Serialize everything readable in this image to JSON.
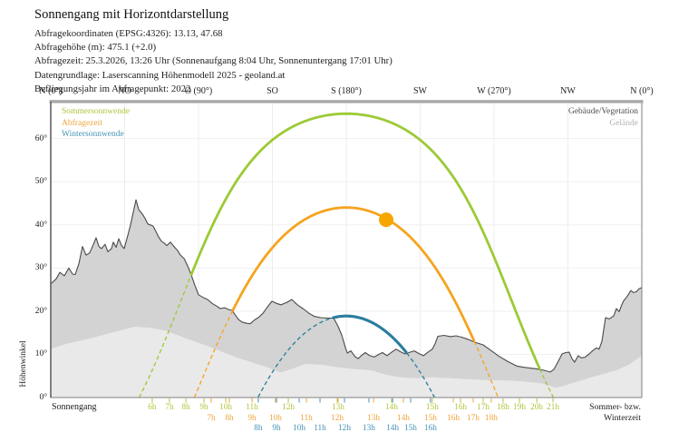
{
  "header": {
    "title": "Sonnengang mit Horizontdarstellung",
    "meta": [
      "Abfragekoordinaten (EPSG:4326): 13.13, 47.68",
      "Abfragehöhe (m): 475.1 (+2.0)",
      "Abfragezeit: 25.3.2026, 13:26 Uhr (Sonnenaufgang 8:04 Uhr, Sonnenuntergang 17:01 Uhr)",
      "Datengrundlage: Laserscanning Höhenmodell 2025 - geoland.at",
      "Befliegungsjahr im Abfragepunkt: 2022"
    ]
  },
  "chart_data": {
    "type": "line",
    "x_axis": {
      "compass_labels": [
        "N (0°)",
        "NO",
        "O (90°)",
        "SO",
        "S (180°)",
        "SW",
        "W (270°)",
        "NW",
        "N (0°)"
      ],
      "azimuth_range": [
        0,
        360
      ]
    },
    "y_axis": {
      "label": "Höhenwinkel",
      "ticks": [
        "0°",
        "10°",
        "20°",
        "30°",
        "40°",
        "50°",
        "60°"
      ],
      "range_deg": [
        0,
        68.55
      ],
      "grid": true
    },
    "latitude": 47.68,
    "series": [
      {
        "key": "summer",
        "name": "Sommersonnwende",
        "declination": 23.44,
        "peak_altitude": 65.8,
        "color": "#9cca35",
        "label_color": "#b2c43e",
        "line_style_above_horizon": "solid",
        "line_style_behind_horizon": "dashed",
        "hours": [
          {
            "t": "6h",
            "az": 61.8
          },
          {
            "t": "7h",
            "az": 72.3
          },
          {
            "t": "8h",
            "az": 82.3
          },
          {
            "t": "9h",
            "az": 93.3
          },
          {
            "t": "10h",
            "az": 106.6
          },
          {
            "t": "11h",
            "az": 122.6
          },
          {
            "t": "12h",
            "az": 144.7
          },
          {
            "t": "13h",
            "az": 175.0
          },
          {
            "t": "14h",
            "az": 207.6
          },
          {
            "t": "15h",
            "az": 232.4
          },
          {
            "t": "16h",
            "az": 249.6
          },
          {
            "t": "17h",
            "az": 263.4
          },
          {
            "t": "18h",
            "az": 275.5
          },
          {
            "t": "19h",
            "az": 285.5
          },
          {
            "t": "20h",
            "az": 296.0
          },
          {
            "t": "21h",
            "az": 305.9
          }
        ]
      },
      {
        "key": "query",
        "name": "Abfragezeit",
        "declination": 1.7,
        "peak_altitude": 44.1,
        "color": "#f5a41f",
        "label_color": "#f0a43c",
        "line_style_above_horizon": "solid",
        "line_style_behind_horizon": "dashed",
        "hours": [
          {
            "t": "7h",
            "az": 97.7
          },
          {
            "t": "8h",
            "az": 108.8
          },
          {
            "t": "9h",
            "az": 122.6
          },
          {
            "t": "10h",
            "az": 136.9
          },
          {
            "t": "11h",
            "az": 155.7
          },
          {
            "t": "12h",
            "az": 174.5
          },
          {
            "t": "13h",
            "az": 196.6
          },
          {
            "t": "14h",
            "az": 214.8
          },
          {
            "t": "15h",
            "az": 231.3
          },
          {
            "t": "16h",
            "az": 245.2
          },
          {
            "t": "17h",
            "az": 257.3
          },
          {
            "t": "18h",
            "az": 268.3
          }
        ]
      },
      {
        "key": "winter",
        "name": "Wintersonnwende",
        "declination": -23.44,
        "peak_altitude": 18.9,
        "color": "#2a7e9e",
        "label_color": "#4793b5",
        "line_style_above_horizon": "solid",
        "line_style_behind_horizon": "dashed",
        "hours": [
          {
            "t": "8h",
            "az": 126.4
          },
          {
            "t": "9h",
            "az": 137.5
          },
          {
            "t": "10h",
            "az": 151.3
          },
          {
            "t": "11h",
            "az": 164.0
          },
          {
            "t": "12h",
            "az": 178.9
          },
          {
            "t": "13h",
            "az": 193.8
          },
          {
            "t": "14h",
            "az": 208.2
          },
          {
            "t": "15h",
            "az": 219.2
          },
          {
            "t": "16h",
            "az": 231.3
          }
        ]
      }
    ],
    "sun_marker": {
      "azimuth": 204.3,
      "altitude": 41.2,
      "color": "#f7a600",
      "series": "Abfragezeit"
    },
    "horizon_buildings_vegetation": {
      "name": "Gebäude/Vegetation",
      "fill": "#d3d3d3",
      "outline": "#4a4a4a",
      "label_color": "#4d4d4d",
      "points": [
        [
          0,
          26.3
        ],
        [
          3.3,
          27.5
        ],
        [
          5.5,
          29
        ],
        [
          8.3,
          28.2
        ],
        [
          11,
          30
        ],
        [
          13.3,
          28.6
        ],
        [
          14.9,
          28.5
        ],
        [
          17.1,
          31
        ],
        [
          19.3,
          35
        ],
        [
          21.5,
          33
        ],
        [
          23.7,
          33.5
        ],
        [
          26,
          35.5
        ],
        [
          27.6,
          37
        ],
        [
          29.3,
          35
        ],
        [
          30.9,
          34.5
        ],
        [
          33.1,
          35.5
        ],
        [
          34.8,
          33.8
        ],
        [
          37,
          34.5
        ],
        [
          38.1,
          36
        ],
        [
          39.8,
          34.8
        ],
        [
          41.4,
          36.8
        ],
        [
          43.1,
          35.2
        ],
        [
          44.7,
          34.5
        ],
        [
          46.9,
          37.5
        ],
        [
          48.6,
          40
        ],
        [
          50.2,
          42.8
        ],
        [
          51.9,
          45.8
        ],
        [
          53.6,
          43.5
        ],
        [
          55.8,
          42.5
        ],
        [
          57.4,
          41.5
        ],
        [
          59.1,
          40.2
        ],
        [
          60.7,
          40
        ],
        [
          62.4,
          39.7
        ],
        [
          64,
          38.5
        ],
        [
          65.7,
          37.2
        ],
        [
          67.4,
          36.2
        ],
        [
          69,
          35.8
        ],
        [
          70.7,
          35.2
        ],
        [
          72.9,
          36
        ],
        [
          75.1,
          35
        ],
        [
          77.3,
          34
        ],
        [
          79,
          33
        ],
        [
          81.2,
          32.2
        ],
        [
          83.4,
          30.5
        ],
        [
          85.6,
          28.4
        ],
        [
          87.8,
          26
        ],
        [
          90,
          23.8
        ],
        [
          92.8,
          23.2
        ],
        [
          95.5,
          22.7
        ],
        [
          98.3,
          21.8
        ],
        [
          101,
          21.2
        ],
        [
          103.2,
          20.6
        ],
        [
          106,
          20.8
        ],
        [
          108.2,
          20.4
        ],
        [
          110.4,
          20.2
        ],
        [
          112.6,
          19
        ],
        [
          114.3,
          18.1
        ],
        [
          116.5,
          17.5
        ],
        [
          119.3,
          17.2
        ],
        [
          121.5,
          17.1
        ],
        [
          124.2,
          18
        ],
        [
          126.4,
          18.5
        ],
        [
          129.2,
          19.5
        ],
        [
          132,
          21
        ],
        [
          134.7,
          22.3
        ],
        [
          137.5,
          21.8
        ],
        [
          140.2,
          21.5
        ],
        [
          143.6,
          22
        ],
        [
          146.8,
          22.7
        ],
        [
          150.2,
          21.5
        ],
        [
          154,
          20.5
        ],
        [
          157.4,
          19.5
        ],
        [
          160.6,
          18.8
        ],
        [
          164.5,
          18.5
        ],
        [
          169,
          18.4
        ],
        [
          172.3,
          18.4
        ],
        [
          175,
          16.5
        ],
        [
          177.2,
          14.5
        ],
        [
          178.4,
          13
        ],
        [
          179.5,
          11.5
        ],
        [
          180.6,
          10.3
        ],
        [
          182.8,
          10.8
        ],
        [
          185,
          9.6
        ],
        [
          187.2,
          9
        ],
        [
          189.4,
          9.8
        ],
        [
          191.6,
          10.4
        ],
        [
          194.3,
          9.7
        ],
        [
          197.1,
          9.4
        ],
        [
          199.9,
          10
        ],
        [
          202.1,
          10.4
        ],
        [
          204.8,
          9.7
        ],
        [
          207.6,
          10.5
        ],
        [
          210.3,
          11.2
        ],
        [
          213.1,
          10.6
        ],
        [
          215.9,
          10.1
        ],
        [
          218.7,
          10.5
        ],
        [
          221.4,
          10.8
        ],
        [
          224.2,
          10.2
        ],
        [
          227,
          9.7
        ],
        [
          229.7,
          10.5
        ],
        [
          232.4,
          11.2
        ],
        [
          234.1,
          12.5
        ],
        [
          235.8,
          14.2
        ],
        [
          239.6,
          14.4
        ],
        [
          243.5,
          14.1
        ],
        [
          246.8,
          14.3
        ],
        [
          250.1,
          14
        ],
        [
          254,
          13.5
        ],
        [
          258.4,
          12.8
        ],
        [
          263.4,
          12.2
        ],
        [
          267.8,
          11
        ],
        [
          272.8,
          9.6
        ],
        [
          278.2,
          8.4
        ],
        [
          283.8,
          7.3
        ],
        [
          288.2,
          7
        ],
        [
          292.6,
          6.8
        ],
        [
          296.5,
          6.6
        ],
        [
          300.4,
          6.3
        ],
        [
          304.2,
          5.9
        ],
        [
          306.4,
          6.5
        ],
        [
          308.6,
          8
        ],
        [
          311.4,
          10.1
        ],
        [
          313.6,
          10.4
        ],
        [
          315.8,
          10.5
        ],
        [
          317.5,
          9
        ],
        [
          319.1,
          8.2
        ],
        [
          321.3,
          9.7
        ],
        [
          323,
          9.2
        ],
        [
          325.2,
          9.3
        ],
        [
          328,
          10.1
        ],
        [
          330.2,
          10.9
        ],
        [
          332.4,
          11.5
        ],
        [
          334,
          11.2
        ],
        [
          335.7,
          13
        ],
        [
          337.9,
          18.5
        ],
        [
          340.1,
          18.2
        ],
        [
          342.9,
          18.9
        ],
        [
          344.5,
          20.6
        ],
        [
          346.2,
          19.9
        ],
        [
          347.8,
          21.5
        ],
        [
          348.9,
          22.4
        ],
        [
          350.6,
          23.2
        ],
        [
          351.7,
          23.8
        ],
        [
          353.3,
          24.8
        ],
        [
          355,
          24.3
        ],
        [
          356.7,
          24.5
        ],
        [
          358.3,
          25.2
        ],
        [
          360,
          25.5
        ]
      ]
    },
    "terrain": {
      "name": "Gelände",
      "fill": "#e9e9e9",
      "label_color": "#b3b3b3",
      "points": [
        [
          0,
          11.3
        ],
        [
          10,
          12.5
        ],
        [
          25,
          13.8
        ],
        [
          40,
          15.3
        ],
        [
          51,
          16.4
        ],
        [
          60,
          16.2
        ],
        [
          70,
          15.5
        ],
        [
          83,
          13.6
        ],
        [
          95,
          12
        ],
        [
          105,
          10.5
        ],
        [
          113,
          9.3
        ],
        [
          122,
          8.2
        ],
        [
          132,
          7
        ],
        [
          140,
          5.8
        ],
        [
          148,
          6.8
        ],
        [
          155,
          7.8
        ],
        [
          165,
          7.6
        ],
        [
          175,
          7
        ],
        [
          185,
          6.6
        ],
        [
          195,
          6.3
        ],
        [
          203,
          5.4
        ],
        [
          212,
          4.7
        ],
        [
          222,
          4.5
        ],
        [
          232,
          4.7
        ],
        [
          242,
          4.5
        ],
        [
          252,
          4.3
        ],
        [
          262,
          4.1
        ],
        [
          272,
          4
        ],
        [
          282,
          3.9
        ],
        [
          292,
          3.6
        ],
        [
          300,
          3.2
        ],
        [
          305,
          2.6
        ],
        [
          308,
          2.3
        ],
        [
          312,
          2.7
        ],
        [
          320,
          3.6
        ],
        [
          330,
          4.8
        ],
        [
          338,
          5.6
        ],
        [
          345,
          6.4
        ],
        [
          352,
          7.6
        ],
        [
          360,
          9.7
        ]
      ]
    },
    "footer": {
      "left": "Sonnengang",
      "right": [
        "Sommer- bzw.",
        "Winterzeit"
      ]
    }
  }
}
